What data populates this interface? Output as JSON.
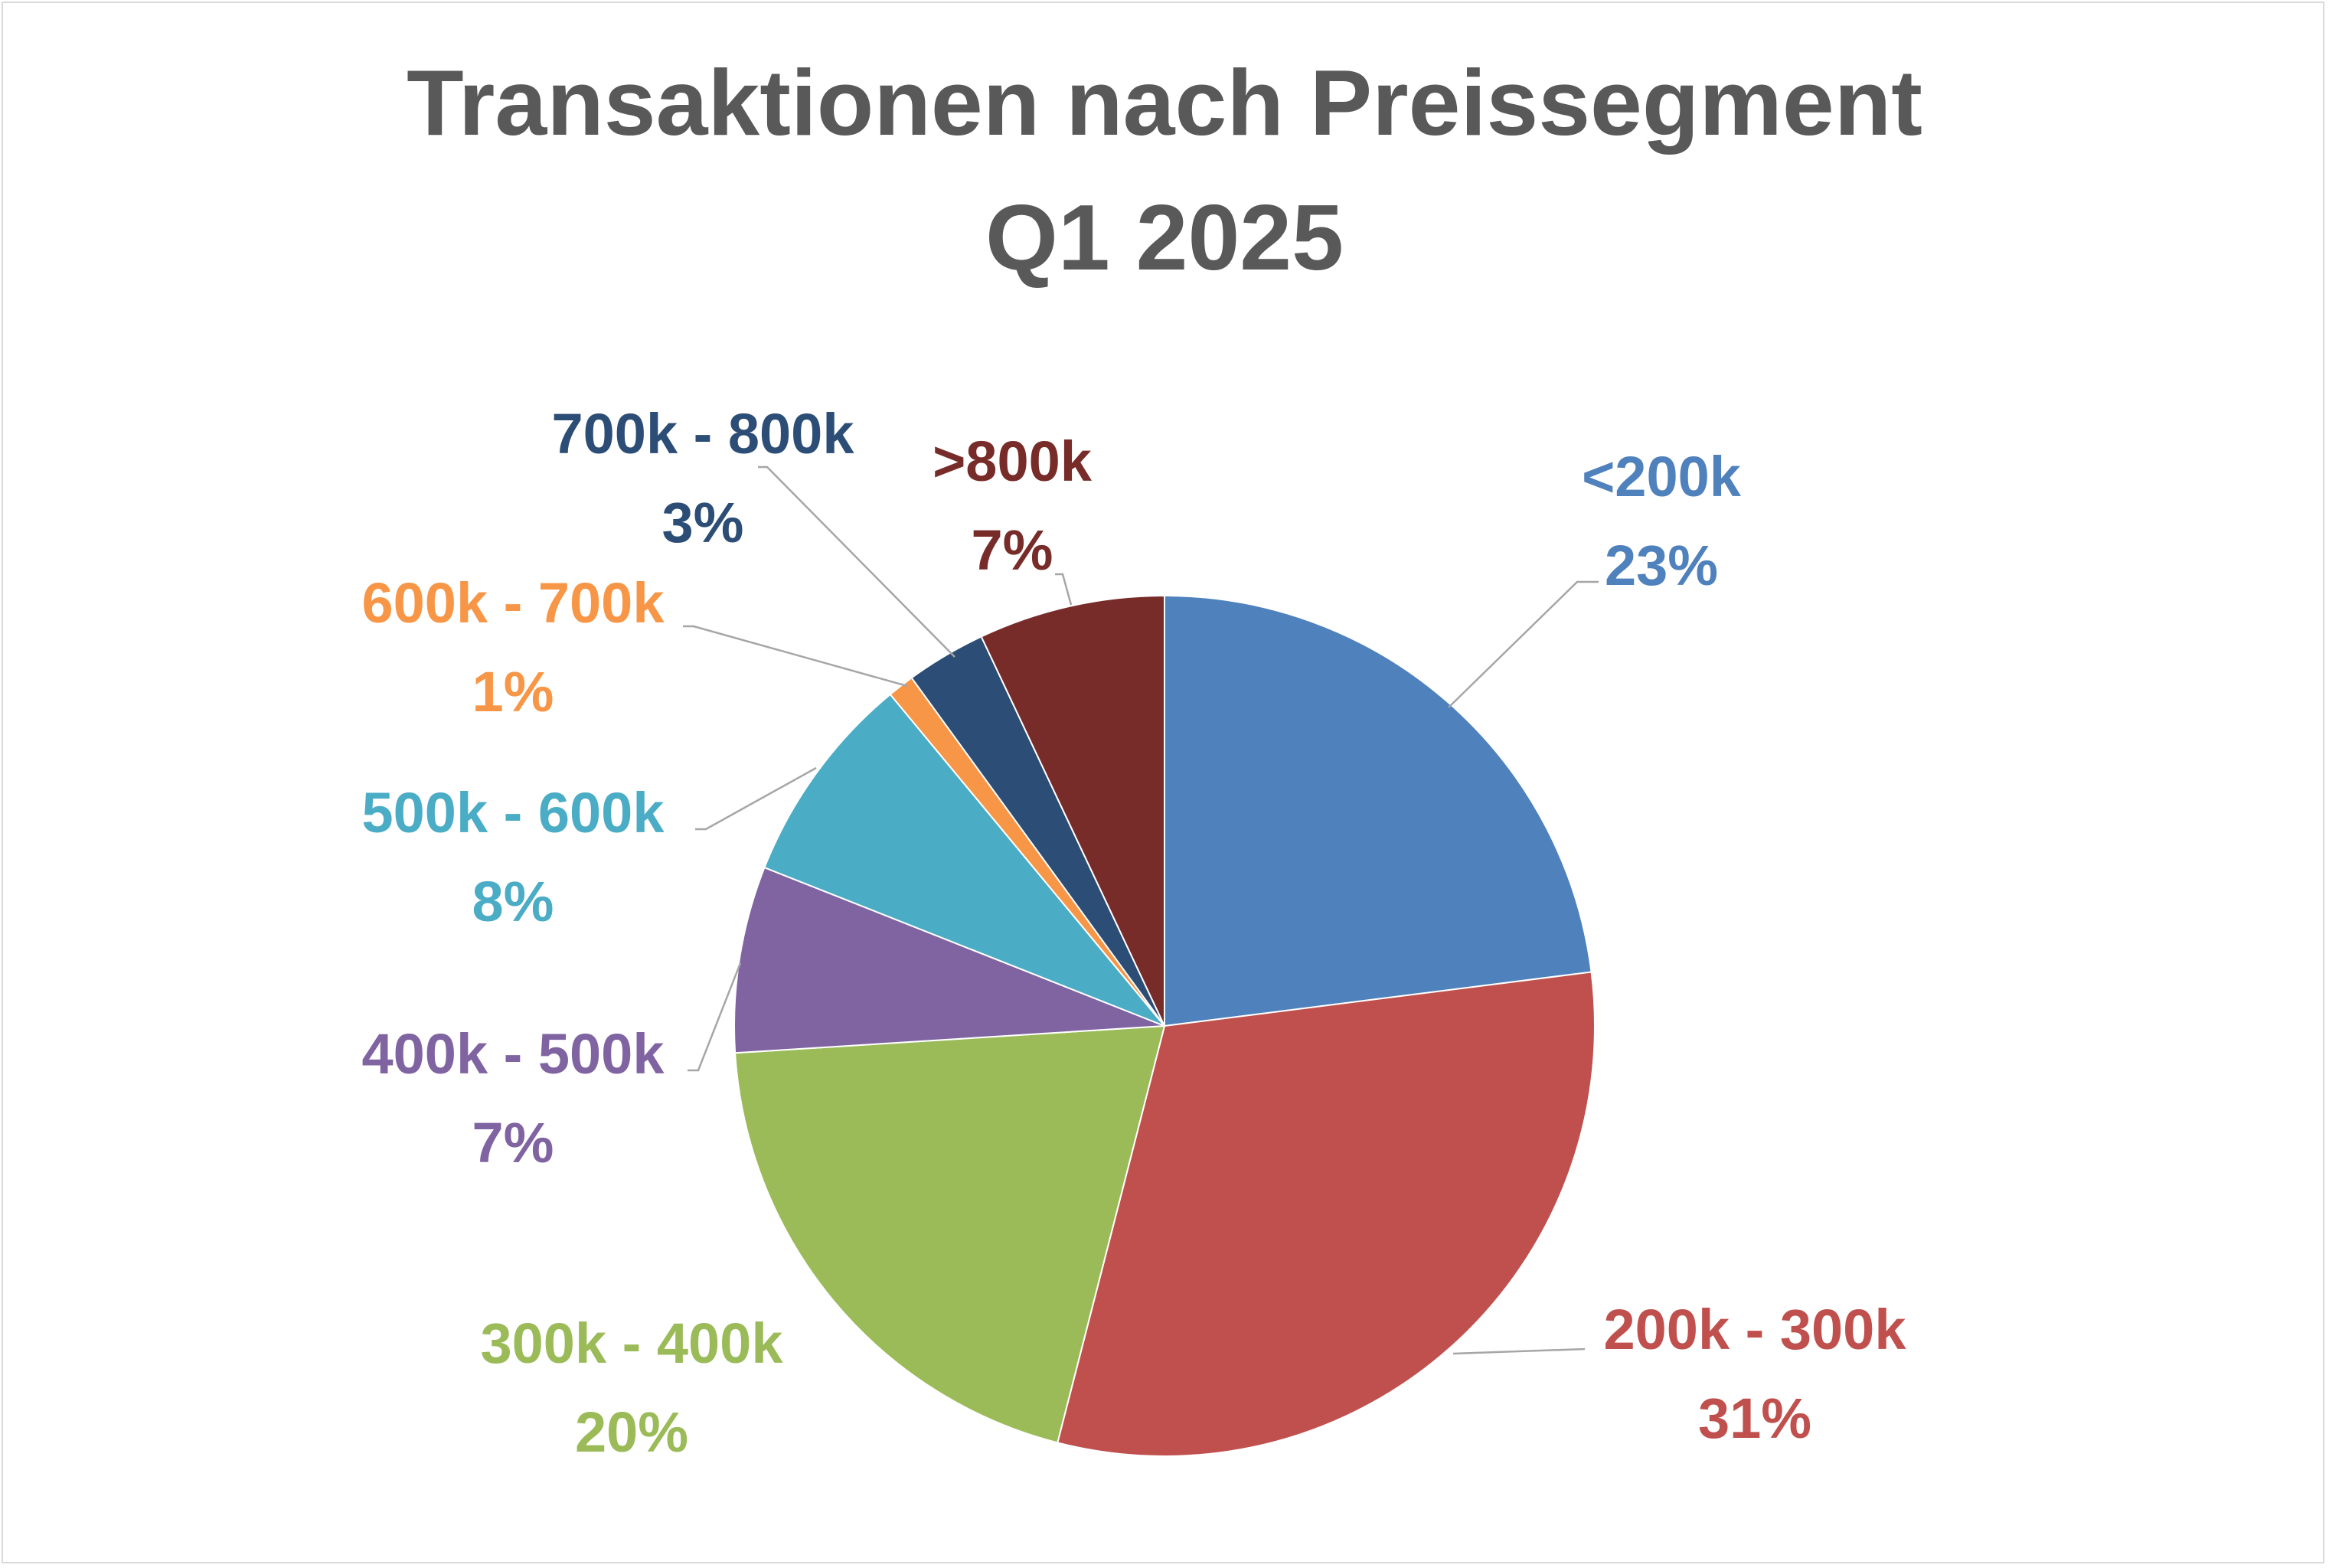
{
  "chart_data": {
    "type": "pie",
    "title": [
      "Transaktionen nach Preissegment",
      "Q1 2025"
    ],
    "start_angle_deg": 0,
    "direction": "clockwise",
    "slices": [
      {
        "label": "<200k",
        "percent_label": "23%",
        "value": 23,
        "color": "#4F81BD"
      },
      {
        "label": "200k - 300k",
        "percent_label": "31%",
        "value": 31,
        "color": "#C0504D"
      },
      {
        "label": "300k - 400k",
        "percent_label": "20%",
        "value": 20,
        "color": "#9BBB59"
      },
      {
        "label": "400k - 500k",
        "percent_label": "7%",
        "value": 7,
        "color": "#8064A2"
      },
      {
        "label": "500k - 600k",
        "percent_label": "8%",
        "value": 8,
        "color": "#4BACC6"
      },
      {
        "label": "600k - 700k",
        "percent_label": "1%",
        "value": 1,
        "color": "#F79646"
      },
      {
        "label": "700k - 800k",
        "percent_label": "3%",
        "value": 3,
        "color": "#2C4D75"
      },
      {
        ">800k": null,
        "label": ">800k",
        "percent_label": "7%",
        "value": 7,
        "color": "#772C2A"
      }
    ],
    "legend": "none"
  }
}
